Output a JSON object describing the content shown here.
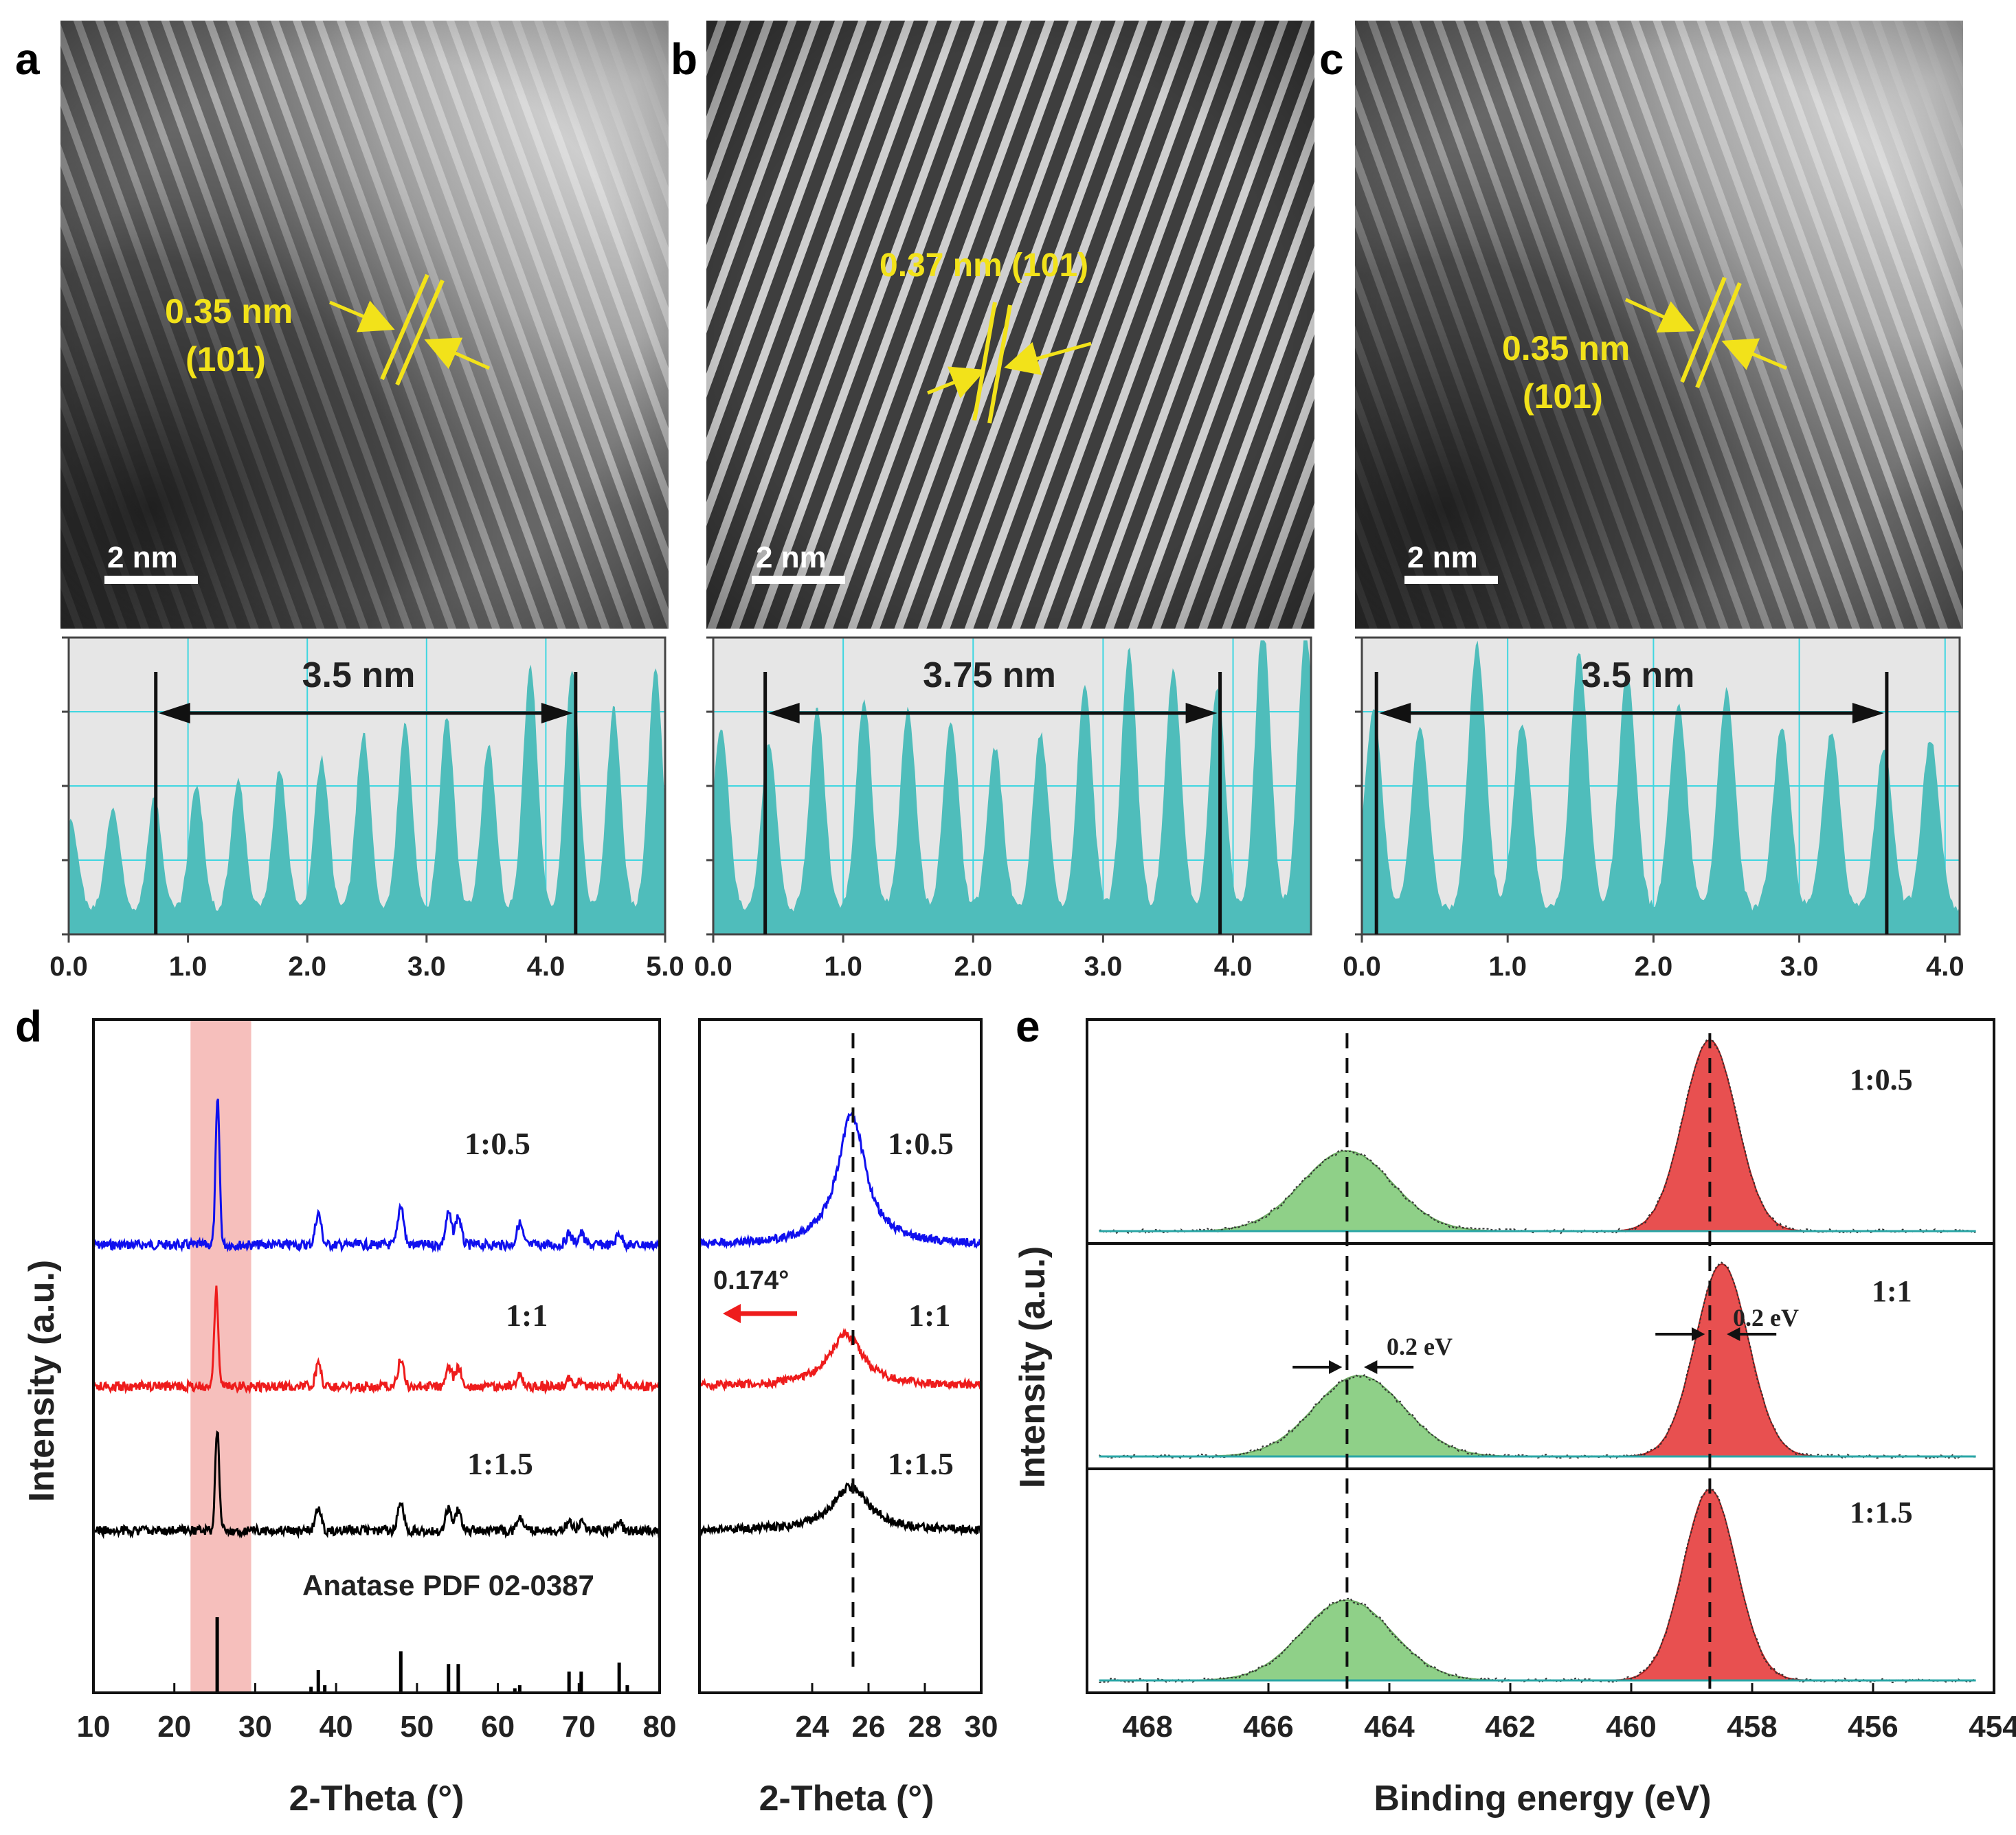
{
  "colors": {
    "yellow": "#f2e21a",
    "teal": "#4fbdbb",
    "grid": "#3fd6e0",
    "bg_profile": "#e6e6e6",
    "blue": "#1010ee",
    "red": "#ee1c1c",
    "black": "#000000",
    "pink_band": "#f3a9a5",
    "green_fill": "#8fd088",
    "red_fill": "#e85050",
    "baseline": "#2aa6a6"
  },
  "panels": {
    "a": {
      "letter": "a",
      "spacing": "0.35 nm",
      "plane": "(101)",
      "scale": "2 nm",
      "distance": "3.5 nm",
      "ticks": [
        "0.0",
        "1.0",
        "2.0",
        "3.0",
        "4.0",
        "5.0"
      ]
    },
    "b": {
      "letter": "b",
      "spacing_plane": "0.37 nm (101)",
      "scale": "2 nm",
      "distance": "3.75 nm",
      "ticks": [
        "0.0",
        "1.0",
        "2.0",
        "3.0",
        "4.0"
      ]
    },
    "c": {
      "letter": "c",
      "spacing": "0.35 nm",
      "plane": "(101)",
      "scale": "2 nm",
      "distance": "3.5 nm",
      "ticks": [
        "0.0",
        "1.0",
        "2.0",
        "3.0",
        "4.0"
      ]
    },
    "d": {
      "letter": "d",
      "ylabel": "Intensity (a.u.)",
      "xlabel": "2-Theta (°)",
      "reference": "Anatase PDF 02-0387",
      "shift": "0.174°",
      "samples": [
        "1:0.5",
        "1:1",
        "1:1.5"
      ]
    },
    "e": {
      "letter": "e",
      "ylabel": "Intensity (a.u.)",
      "xlabel": "Binding energy (eV)",
      "shift_label": "0.2 eV",
      "samples": [
        "1:0.5",
        "1:1",
        "1:1.5"
      ]
    }
  },
  "chart_data": [
    {
      "id": "profile-a",
      "type": "area",
      "title": "",
      "xlabel": "",
      "ylabel": "",
      "xlim": [
        0,
        5.0
      ],
      "x_ticks": [
        0,
        1,
        2,
        3,
        4,
        5
      ],
      "peak_positions": [
        0.02,
        0.37,
        0.72,
        1.07,
        1.42,
        1.77,
        2.12,
        2.47,
        2.82,
        3.17,
        3.52,
        3.87,
        4.22,
        4.57,
        4.92
      ],
      "peak_heights": [
        0.3,
        0.35,
        0.38,
        0.42,
        0.44,
        0.48,
        0.52,
        0.6,
        0.63,
        0.66,
        0.56,
        0.83,
        0.82,
        0.68,
        0.82
      ],
      "markers": [
        0.73,
        4.25
      ],
      "annotation": "3.5 nm"
    },
    {
      "id": "profile-b",
      "type": "area",
      "xlim": [
        0,
        4.6
      ],
      "x_ticks": [
        0,
        1,
        2,
        3,
        4
      ],
      "peak_positions": [
        0.06,
        0.43,
        0.8,
        1.16,
        1.5,
        1.83,
        2.17,
        2.52,
        2.86,
        3.2,
        3.54,
        3.88,
        4.23,
        4.56
      ],
      "peak_heights": [
        0.62,
        0.56,
        0.68,
        0.72,
        0.68,
        0.64,
        0.55,
        0.6,
        0.76,
        0.88,
        0.82,
        0.76,
        0.98,
        0.95
      ],
      "markers": [
        0.4,
        3.9
      ],
      "annotation": "3.75 nm"
    },
    {
      "id": "profile-c",
      "type": "area",
      "xlim": [
        0,
        4.1
      ],
      "x_ticks": [
        0,
        1,
        2,
        3,
        4
      ],
      "peak_positions": [
        0.08,
        0.4,
        0.79,
        1.1,
        1.49,
        1.82,
        2.17,
        2.5,
        2.88,
        3.22,
        3.58,
        3.9
      ],
      "peak_heights": [
        0.68,
        0.62,
        0.9,
        0.64,
        0.88,
        0.8,
        0.7,
        0.74,
        0.62,
        0.6,
        0.55,
        0.58
      ],
      "markers": [
        0.1,
        3.6
      ],
      "annotation": "3.5 nm"
    },
    {
      "id": "xrd-full",
      "type": "line",
      "xlabel": "2-Theta (°)",
      "ylabel": "Intensity (a.u.)",
      "xlim": [
        10,
        80
      ],
      "x_ticks": [
        10,
        20,
        30,
        40,
        50,
        60,
        70,
        80
      ],
      "highlight_range": [
        22,
        29.5
      ],
      "peaks_2theta": [
        25.3,
        37.8,
        48.0,
        53.9,
        55.1,
        62.7,
        68.8,
        70.3,
        75.0
      ],
      "peak_rel": [
        1.0,
        0.22,
        0.28,
        0.22,
        0.2,
        0.15,
        0.08,
        0.08,
        0.08
      ],
      "series": [
        {
          "name": "1:0.5",
          "color": "#1010ee",
          "main_peak": 25.35
        },
        {
          "name": "1:1",
          "color": "#ee1c1c",
          "main_peak": 25.18
        },
        {
          "name": "1:1.5",
          "color": "#000000",
          "main_peak": 25.3
        }
      ],
      "reference_sticks": [
        {
          "x": 25.3,
          "h": 1.0
        },
        {
          "x": 36.9,
          "h": 0.08
        },
        {
          "x": 37.8,
          "h": 0.3
        },
        {
          "x": 38.6,
          "h": 0.1
        },
        {
          "x": 48.0,
          "h": 0.55
        },
        {
          "x": 53.9,
          "h": 0.38
        },
        {
          "x": 55.1,
          "h": 0.38
        },
        {
          "x": 62.1,
          "h": 0.06
        },
        {
          "x": 62.7,
          "h": 0.1
        },
        {
          "x": 68.8,
          "h": 0.28
        },
        {
          "x": 70.3,
          "h": 0.28
        },
        {
          "x": 75.0,
          "h": 0.4
        },
        {
          "x": 76.0,
          "h": 0.1
        }
      ],
      "reference_label": "Anatase PDF 02-0387"
    },
    {
      "id": "xrd-zoom",
      "type": "line",
      "xlabel": "2-Theta (°)",
      "xlim": [
        20,
        30
      ],
      "x_ticks": [
        24,
        26,
        28,
        30
      ],
      "dashed_x": 25.45,
      "series": [
        {
          "name": "1:0.5",
          "color": "#1010ee",
          "peak": 25.4,
          "width": 0.6,
          "height": 1.0
        },
        {
          "name": "1:1",
          "color": "#ee1c1c",
          "peak": 25.2,
          "width": 0.75,
          "height": 0.62
        },
        {
          "name": "1:1.5",
          "color": "#000000",
          "peak": 25.35,
          "width": 0.8,
          "height": 0.58
        }
      ],
      "annotation": "0.174°"
    },
    {
      "id": "xps-ti2p",
      "type": "area",
      "xlabel": "Binding energy (eV)",
      "ylabel": "Intensity (a.u.)",
      "xlim": [
        469,
        454
      ],
      "x_ticks": [
        468,
        466,
        464,
        462,
        460,
        458,
        456,
        454
      ],
      "dashed_x": [
        464.7,
        458.7
      ],
      "series": [
        {
          "name": "1:0.5",
          "ti2p1_2": 464.7,
          "ti2p3_2": 458.7
        },
        {
          "name": "1:1",
          "ti2p1_2": 464.5,
          "ti2p3_2": 458.5
        },
        {
          "name": "1:1.5",
          "ti2p1_2": 464.7,
          "ti2p3_2": 458.7
        }
      ],
      "annotation": "0.2 eV"
    }
  ]
}
